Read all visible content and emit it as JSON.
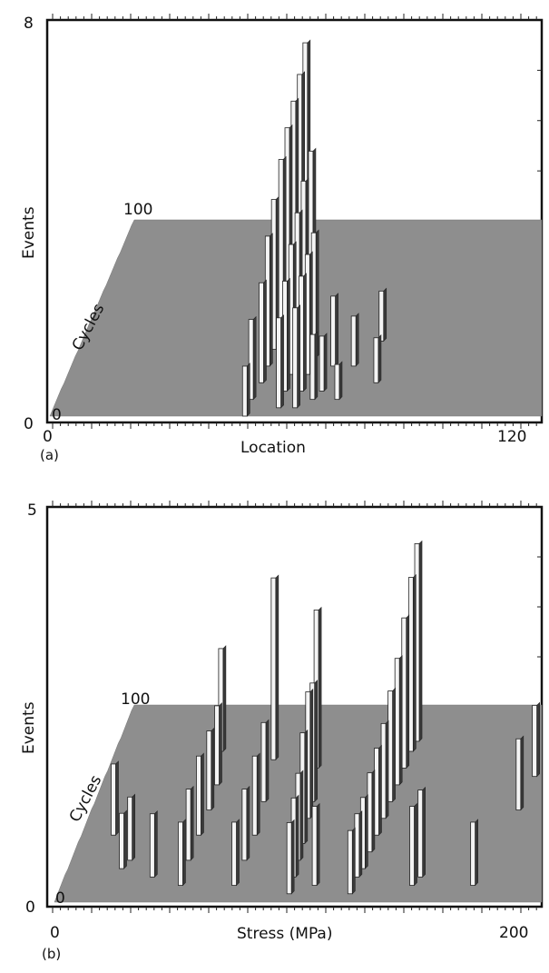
{
  "chart_data": [
    {
      "type": "bar3d",
      "panel_label": "(a)",
      "xlabel": "Location",
      "ylabel": "Events",
      "depth_label": "Cycles",
      "x_tick_labels": [
        "0",
        "120"
      ],
      "y_tick_labels": [
        "0",
        "8"
      ],
      "depth_tick_labels": [
        "0",
        "100"
      ],
      "xlim": [
        0,
        120
      ],
      "ylim": [
        0,
        8
      ],
      "depth_range": [
        0,
        100
      ],
      "bars": [
        {
          "x": 47,
          "cycle": 0,
          "value": 1.0
        },
        {
          "x": 48,
          "cycle": 10,
          "value": 1.6
        },
        {
          "x": 50,
          "cycle": 20,
          "value": 2.0
        },
        {
          "x": 51,
          "cycle": 30,
          "value": 2.6
        },
        {
          "x": 52,
          "cycle": 40,
          "value": 3.0
        },
        {
          "x": 53,
          "cycle": 55,
          "value": 3.3
        },
        {
          "x": 54,
          "cycle": 65,
          "value": 3.6
        },
        {
          "x": 55,
          "cycle": 75,
          "value": 3.8
        },
        {
          "x": 56,
          "cycle": 85,
          "value": 4.0
        },
        {
          "x": 57,
          "cycle": 92,
          "value": 4.4
        },
        {
          "x": 55,
          "cycle": 5,
          "value": 1.8
        },
        {
          "x": 56,
          "cycle": 15,
          "value": 2.2
        },
        {
          "x": 57,
          "cycle": 25,
          "value": 2.6
        },
        {
          "x": 58,
          "cycle": 35,
          "value": 2.9
        },
        {
          "x": 59,
          "cycle": 45,
          "value": 3.2
        },
        {
          "x": 60,
          "cycle": 60,
          "value": 3.3
        },
        {
          "x": 59,
          "cycle": 5,
          "value": 2.0
        },
        {
          "x": 60,
          "cycle": 15,
          "value": 2.3
        },
        {
          "x": 61,
          "cycle": 25,
          "value": 2.4
        },
        {
          "x": 62,
          "cycle": 35,
          "value": 2.5
        },
        {
          "x": 63,
          "cycle": 10,
          "value": 1.3
        },
        {
          "x": 65,
          "cycle": 15,
          "value": 1.1
        },
        {
          "x": 67,
          "cycle": 30,
          "value": 1.4
        },
        {
          "x": 69,
          "cycle": 10,
          "value": 0.7
        },
        {
          "x": 72,
          "cycle": 30,
          "value": 1.0
        },
        {
          "x": 78,
          "cycle": 20,
          "value": 0.9
        },
        {
          "x": 78,
          "cycle": 45,
          "value": 1.0
        }
      ]
    },
    {
      "type": "bar3d",
      "panel_label": "(b)",
      "xlabel": "Stress (MPa)",
      "ylabel": "Events",
      "depth_label": "Cycles",
      "x_tick_labels": [
        "0",
        "200"
      ],
      "y_tick_labels": [
        "0",
        "5"
      ],
      "depth_tick_labels": [
        "0",
        "100"
      ],
      "xlim": [
        0,
        200
      ],
      "ylim": [
        0,
        5
      ],
      "depth_range": [
        0,
        100
      ],
      "bars": [
        {
          "x": 20,
          "cycle": 40,
          "value": 0.9
        },
        {
          "x": 25,
          "cycle": 20,
          "value": 0.7
        },
        {
          "x": 28,
          "cycle": 25,
          "value": 0.8
        },
        {
          "x": 38,
          "cycle": 15,
          "value": 0.8
        },
        {
          "x": 50,
          "cycle": 10,
          "value": 0.8
        },
        {
          "x": 52,
          "cycle": 25,
          "value": 0.9
        },
        {
          "x": 55,
          "cycle": 40,
          "value": 1.0
        },
        {
          "x": 58,
          "cycle": 55,
          "value": 1.0
        },
        {
          "x": 60,
          "cycle": 70,
          "value": 1.0
        },
        {
          "x": 60,
          "cycle": 90,
          "value": 1.3
        },
        {
          "x": 72,
          "cycle": 10,
          "value": 0.8
        },
        {
          "x": 75,
          "cycle": 25,
          "value": 0.9
        },
        {
          "x": 78,
          "cycle": 40,
          "value": 1.0
        },
        {
          "x": 80,
          "cycle": 60,
          "value": 1.0
        },
        {
          "x": 82,
          "cycle": 85,
          "value": 2.3
        },
        {
          "x": 95,
          "cycle": 5,
          "value": 0.9
        },
        {
          "x": 96,
          "cycle": 15,
          "value": 1.0
        },
        {
          "x": 97,
          "cycle": 25,
          "value": 1.1
        },
        {
          "x": 98,
          "cycle": 35,
          "value": 1.4
        },
        {
          "x": 99,
          "cycle": 50,
          "value": 1.6
        },
        {
          "x": 100,
          "cycle": 60,
          "value": 1.5
        },
        {
          "x": 100,
          "cycle": 80,
          "value": 2.0
        },
        {
          "x": 105,
          "cycle": 10,
          "value": 1.0
        },
        {
          "x": 120,
          "cycle": 5,
          "value": 0.8
        },
        {
          "x": 122,
          "cycle": 15,
          "value": 0.8
        },
        {
          "x": 124,
          "cycle": 20,
          "value": 0.9
        },
        {
          "x": 126,
          "cycle": 30,
          "value": 1.0
        },
        {
          "x": 128,
          "cycle": 40,
          "value": 1.1
        },
        {
          "x": 130,
          "cycle": 50,
          "value": 1.2
        },
        {
          "x": 132,
          "cycle": 60,
          "value": 1.4
        },
        {
          "x": 134,
          "cycle": 70,
          "value": 1.6
        },
        {
          "x": 136,
          "cycle": 80,
          "value": 1.9
        },
        {
          "x": 138,
          "cycle": 90,
          "value": 2.2
        },
        {
          "x": 140,
          "cycle": 96,
          "value": 2.5
        },
        {
          "x": 145,
          "cycle": 10,
          "value": 1.0
        },
        {
          "x": 148,
          "cycle": 15,
          "value": 1.1
        },
        {
          "x": 170,
          "cycle": 10,
          "value": 0.8
        },
        {
          "x": 185,
          "cycle": 55,
          "value": 0.9
        },
        {
          "x": 190,
          "cycle": 75,
          "value": 0.9
        }
      ]
    }
  ]
}
